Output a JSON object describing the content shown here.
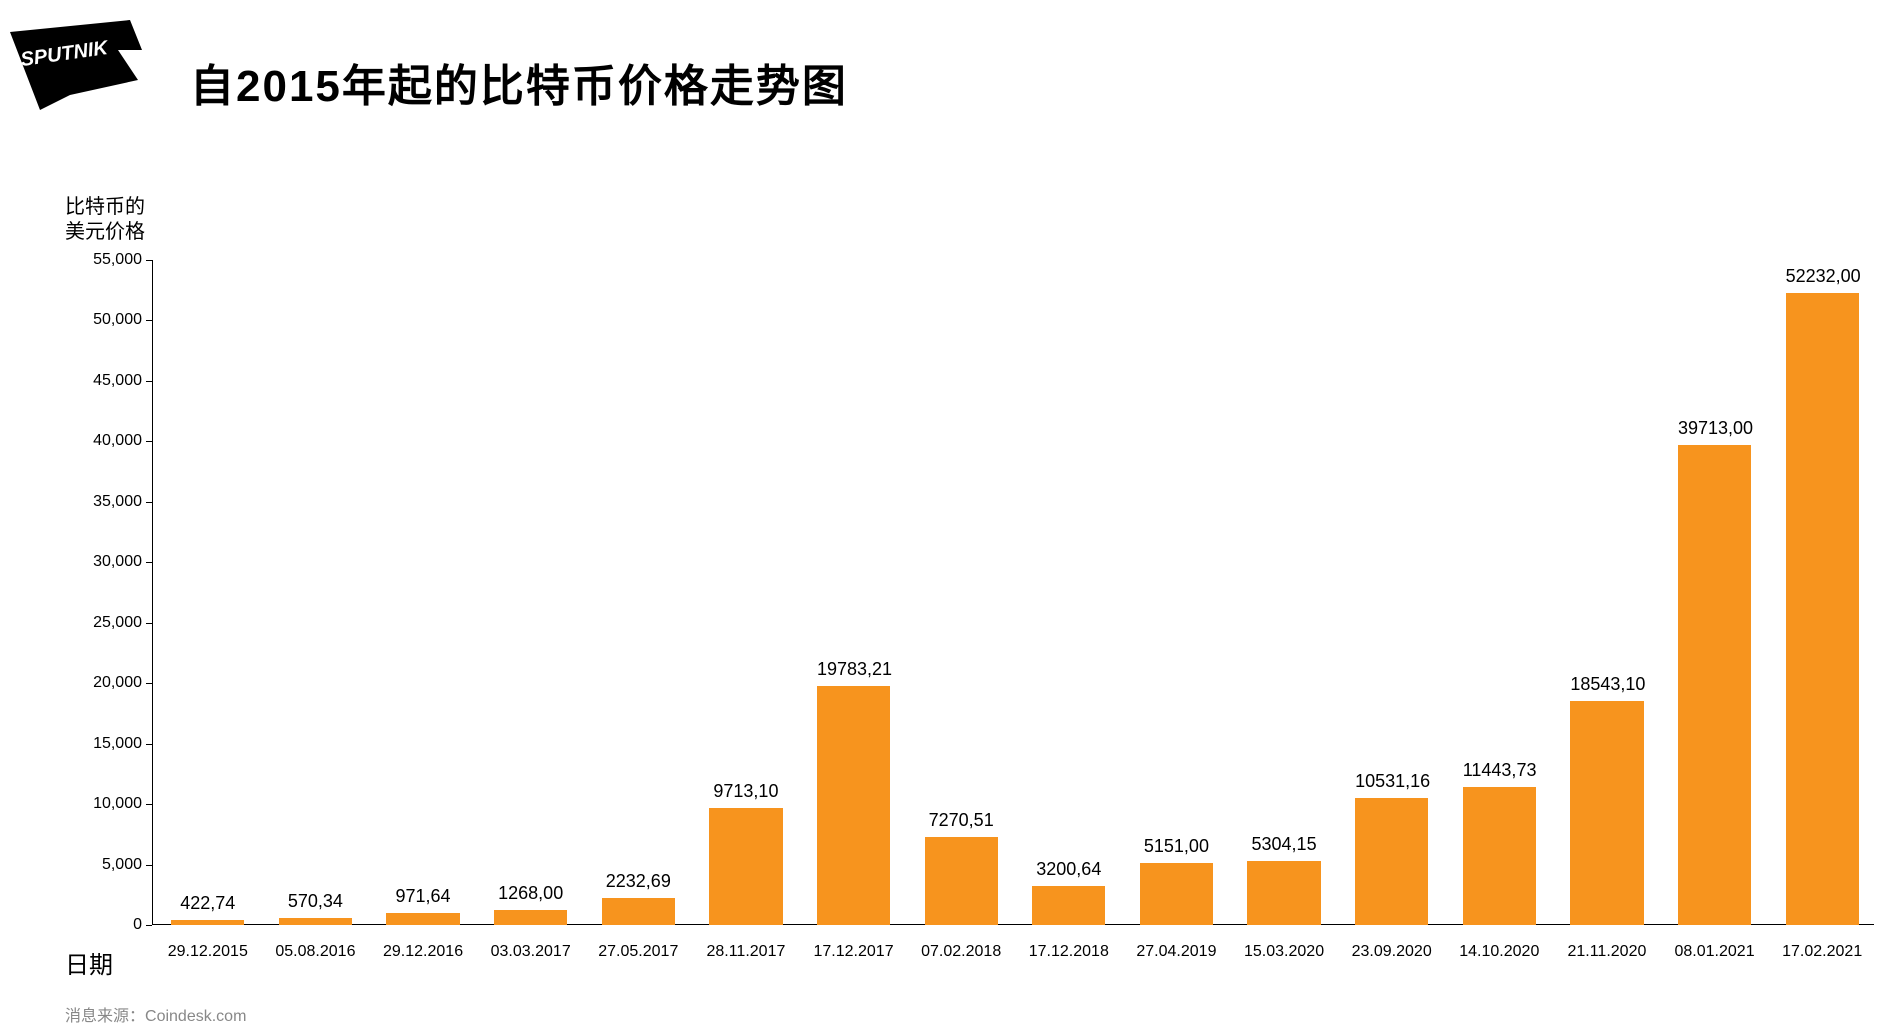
{
  "logo": {
    "text": "SPUTNIK",
    "bg": "#000000",
    "fg": "#ffffff"
  },
  "title": "自2015年起的比特币价格走势图",
  "yaxis_label": "比特币的\n美元价格",
  "xaxis_label": "日期",
  "source_prefix": "消息来源：",
  "source_name": "Coindesk.com",
  "chart": {
    "type": "bar",
    "ylim": [
      0,
      55000
    ],
    "ytick_step": 5000,
    "yticks": [
      "0",
      "5,000",
      "10,000",
      "15,000",
      "20,000",
      "25,000",
      "30,000",
      "35,000",
      "40,000",
      "45,000",
      "50,000",
      "55,000"
    ],
    "bar_color": "#f7941e",
    "background_color": "#ffffff",
    "axis_color": "#000000",
    "label_fontsize": 18,
    "tick_fontsize": 16,
    "bar_width_ratio": 0.68,
    "categories": [
      "29.12.2015",
      "05.08.2016",
      "29.12.2016",
      "03.03.2017",
      "27.05.2017",
      "28.11.2017",
      "17.12.2017",
      "07.02.2018",
      "17.12.2018",
      "27.04.2019",
      "15.03.2020",
      "23.09.2020",
      "14.10.2020",
      "21.11.2020",
      "08.01.2021",
      "17.02.2021"
    ],
    "values": [
      422.74,
      570.34,
      971.64,
      1268.0,
      2232.69,
      9713.1,
      19783.21,
      7270.51,
      3200.64,
      5151.0,
      5304.15,
      10531.16,
      11443.73,
      18543.1,
      39713.0,
      52232.0
    ],
    "value_labels": [
      "422,74",
      "570,34",
      "971,64",
      "1268,00",
      "2232,69",
      "9713,10",
      "19783,21",
      "7270,51",
      "3200,64",
      "5151,00",
      "5304,15",
      "10531,16",
      "11443,73",
      "18543,10",
      "39713,00",
      "52232,00"
    ]
  }
}
